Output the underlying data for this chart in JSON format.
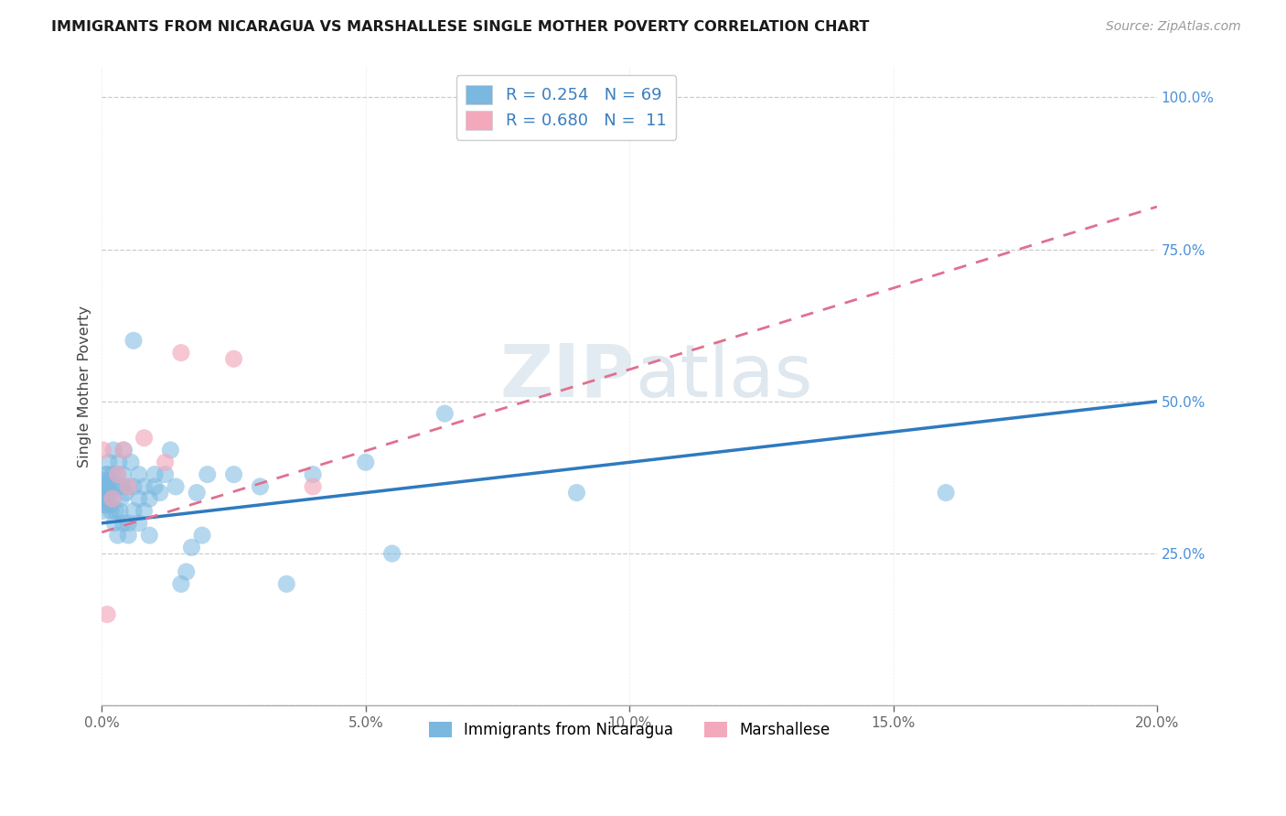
{
  "title": "IMMIGRANTS FROM NICARAGUA VS MARSHALLESE SINGLE MOTHER POVERTY CORRELATION CHART",
  "source": "Source: ZipAtlas.com",
  "ylabel": "Single Mother Poverty",
  "legend_label1": "Immigrants from Nicaragua",
  "legend_label2": "Marshallese",
  "R1": 0.254,
  "N1": 69,
  "R2": 0.68,
  "N2": 11,
  "blue_color": "#7ab8e0",
  "pink_color": "#f4a8bc",
  "blue_line_color": "#2e7abf",
  "pink_line_color": "#e07090",
  "watermark_zip_color": "#c8d8e8",
  "watermark_atlas_color": "#b8c8d8",
  "title_color": "#1a1a1a",
  "source_color": "#999999",
  "axis_tick_color": "#4a90d9",
  "ylabel_color": "#444444",
  "grid_color": "#cccccc",
  "legend_text_color": "#3a7ec0",
  "xlim": [
    0.0,
    0.2
  ],
  "ylim": [
    0.0,
    1.05
  ],
  "blue_line_x0": 0.0,
  "blue_line_y0": 0.3,
  "blue_line_x1": 0.2,
  "blue_line_y1": 0.5,
  "pink_line_x0": 0.0,
  "pink_line_y0": 0.285,
  "pink_line_x1": 0.2,
  "pink_line_y1": 0.82,
  "blue_pts_x": [
    0.0002,
    0.0003,
    0.0004,
    0.0005,
    0.0006,
    0.0007,
    0.0008,
    0.0008,
    0.0009,
    0.001,
    0.001,
    0.0012,
    0.0013,
    0.0014,
    0.0015,
    0.0016,
    0.0017,
    0.0018,
    0.002,
    0.002,
    0.0022,
    0.0024,
    0.0026,
    0.003,
    0.003,
    0.003,
    0.0032,
    0.0034,
    0.0036,
    0.004,
    0.004,
    0.004,
    0.0042,
    0.0045,
    0.005,
    0.005,
    0.005,
    0.0055,
    0.006,
    0.006,
    0.006,
    0.007,
    0.007,
    0.007,
    0.008,
    0.008,
    0.009,
    0.009,
    0.01,
    0.01,
    0.011,
    0.012,
    0.013,
    0.014,
    0.015,
    0.016,
    0.017,
    0.018,
    0.019,
    0.02,
    0.025,
    0.03,
    0.035,
    0.04,
    0.05,
    0.055,
    0.065,
    0.09,
    0.16
  ],
  "blue_pts_y": [
    0.32,
    0.34,
    0.33,
    0.35,
    0.36,
    0.37,
    0.34,
    0.38,
    0.33,
    0.35,
    0.38,
    0.36,
    0.4,
    0.37,
    0.35,
    0.33,
    0.32,
    0.36,
    0.34,
    0.38,
    0.42,
    0.3,
    0.32,
    0.28,
    0.36,
    0.38,
    0.4,
    0.32,
    0.34,
    0.3,
    0.36,
    0.38,
    0.42,
    0.35,
    0.28,
    0.3,
    0.36,
    0.4,
    0.32,
    0.36,
    0.6,
    0.3,
    0.34,
    0.38,
    0.32,
    0.36,
    0.28,
    0.34,
    0.36,
    0.38,
    0.35,
    0.38,
    0.42,
    0.36,
    0.2,
    0.22,
    0.26,
    0.35,
    0.28,
    0.38,
    0.38,
    0.36,
    0.2,
    0.38,
    0.4,
    0.25,
    0.48,
    0.35,
    0.35
  ],
  "pink_pts_x": [
    0.0002,
    0.001,
    0.002,
    0.003,
    0.004,
    0.005,
    0.008,
    0.012,
    0.015,
    0.025,
    0.04
  ],
  "pink_pts_y": [
    0.42,
    0.15,
    0.34,
    0.38,
    0.42,
    0.36,
    0.44,
    0.4,
    0.58,
    0.57,
    0.36
  ]
}
